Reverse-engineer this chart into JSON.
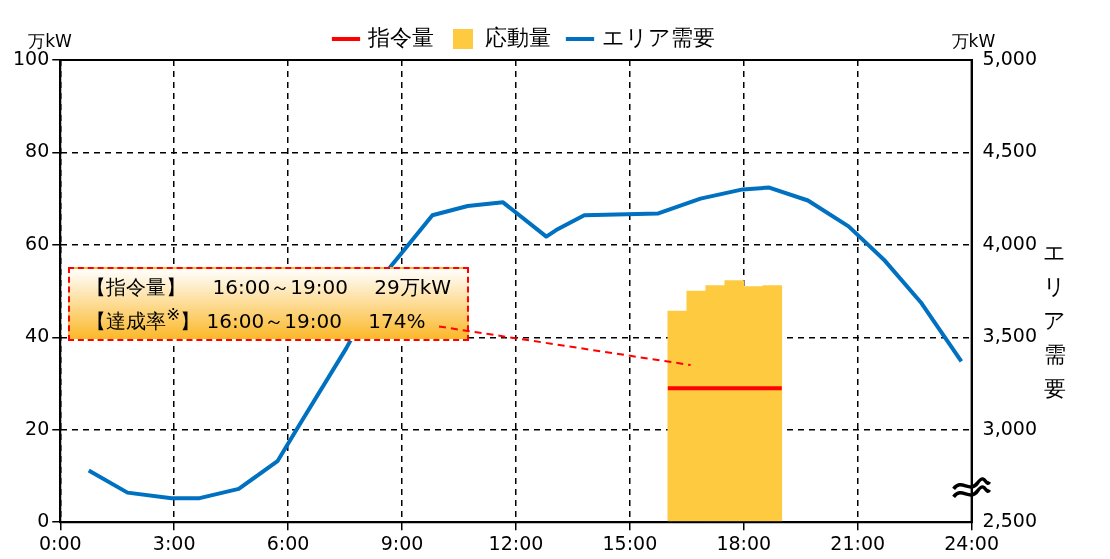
{
  "chart_data": {
    "type": "bar",
    "ylabel": "万kW",
    "y2label": "エリア需要",
    "annotations": [
      "万kW",
      "【指令量】　 16:00～19:00　 29万kW",
      {
        "text": "【達成率$^{※}$】 16:00～19:00　 174%",
        "x": 16.6,
        "y": 34
      }
    ],
    "series": [
      {
        "name": "指令量",
        "type": "line",
        "color": "#ff0000",
        "x": [
          16,
          19
        ],
        "values": [
          29,
          29
        ]
      },
      {
        "name": "応動量",
        "color": "#fdca40",
        "x": [
          16.25,
          16.75,
          17.25,
          17.75,
          18.25,
          18.75
        ],
        "values": [
          45.7,
          50.0,
          51.2,
          52.3,
          51.0,
          51.2
        ]
      },
      {
        "name": "エリア需要",
        "type": "line",
        "axis": "y2",
        "color": "#0070c0",
        "x": [
          0.75,
          1.77,
          2.93,
          3.67,
          4.7,
          5.72,
          6.28,
          7.53,
          8.69,
          9.8,
          10.73,
          11.66,
          12.8,
          13.06,
          13.8,
          15.75,
          16.86,
          17.97,
          18.67,
          19.69,
          20.76,
          21.69,
          22.66,
          23.73
        ],
        "values": [
          2780,
          2660,
          2630,
          2630,
          2680,
          2830,
          3020,
          3440,
          3880,
          4160,
          4210,
          4230,
          4045,
          4080,
          4160,
          4170,
          4250,
          4300,
          4310,
          4240,
          4100,
          3920,
          3690,
          3370
        ]
      }
    ],
    "xlim": [
      0,
      24
    ],
    "xticks": [
      {
        "value": 0,
        "label": "0:00"
      },
      {
        "value": 3,
        "label": "3:00"
      },
      {
        "value": 6,
        "label": "6:00"
      },
      {
        "value": 9,
        "label": "9:00"
      },
      {
        "value": 12,
        "label": "12:00"
      },
      {
        "value": 15,
        "label": "15:00"
      },
      {
        "value": 18,
        "label": "18:00"
      },
      {
        "value": 21,
        "label": "21:00"
      },
      {
        "value": 24,
        "label": "24:00"
      }
    ],
    "ylim": [
      0,
      100
    ],
    "yticks": [
      0,
      20,
      40,
      60,
      80,
      100
    ],
    "y2lim": [
      2500,
      5000
    ],
    "y2ticks": [
      {
        "value": 2500,
        "label": "2,500"
      },
      {
        "value": 3000,
        "label": "3,000"
      },
      {
        "value": 3500,
        "label": "3,500"
      },
      {
        "value": 4000,
        "label": "4,000"
      },
      {
        "value": 4500,
        "label": "4,500"
      },
      {
        "value": 5000,
        "label": "5,000"
      }
    ],
    "grid": true,
    "legend": "top",
    "marker": "none",
    "line_style": "solid"
  }
}
